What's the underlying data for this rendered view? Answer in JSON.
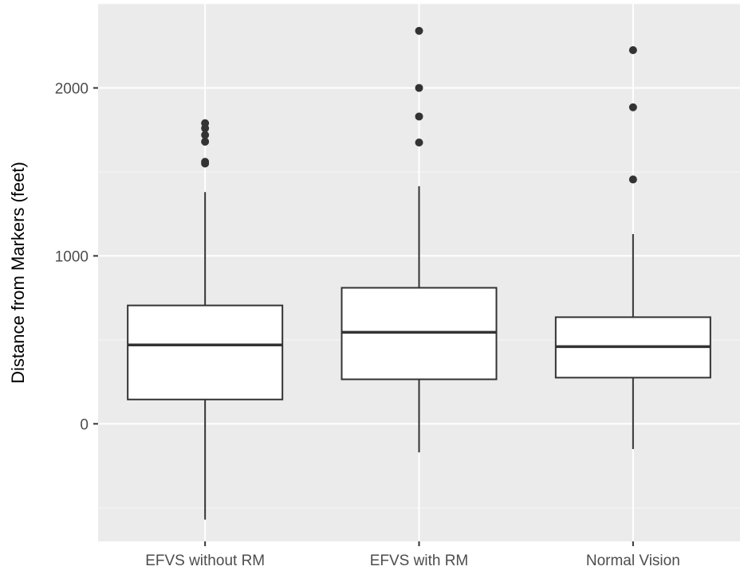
{
  "chart_data": {
    "type": "boxplot",
    "title": "",
    "xlabel": "",
    "ylabel": "Distance from Markers (feet)",
    "ylim": [
      -700,
      2500
    ],
    "yticks": [
      0,
      1000,
      2000
    ],
    "grid": true,
    "legend": "none",
    "colors": {
      "panel_background": "#ebebeb",
      "grid_major": "#ffffff",
      "grid_minor": "#f7f7f7",
      "box_fill": "#ffffff",
      "box_stroke": "#333333",
      "outlier": "#333333",
      "tick_label": "#4d4d4d",
      "axis_title": "#000000"
    },
    "categories": [
      "EFVS without RM",
      "EFVS with RM",
      "Normal Vision"
    ],
    "boxes": [
      {
        "category": "EFVS without RM",
        "whisker_low": -570,
        "q1": 145,
        "median": 470,
        "q3": 705,
        "whisker_high": 1380,
        "outliers": [
          1550,
          1560,
          1680,
          1720,
          1760,
          1790
        ]
      },
      {
        "category": "EFVS with RM",
        "whisker_low": -170,
        "q1": 265,
        "median": 545,
        "q3": 810,
        "whisker_high": 1415,
        "outliers": [
          1675,
          1830,
          2000,
          2340
        ]
      },
      {
        "category": "Normal Vision",
        "whisker_low": -150,
        "q1": 275,
        "median": 460,
        "q3": 635,
        "whisker_high": 1130,
        "outliers": [
          1455,
          1885,
          2225
        ]
      }
    ]
  }
}
